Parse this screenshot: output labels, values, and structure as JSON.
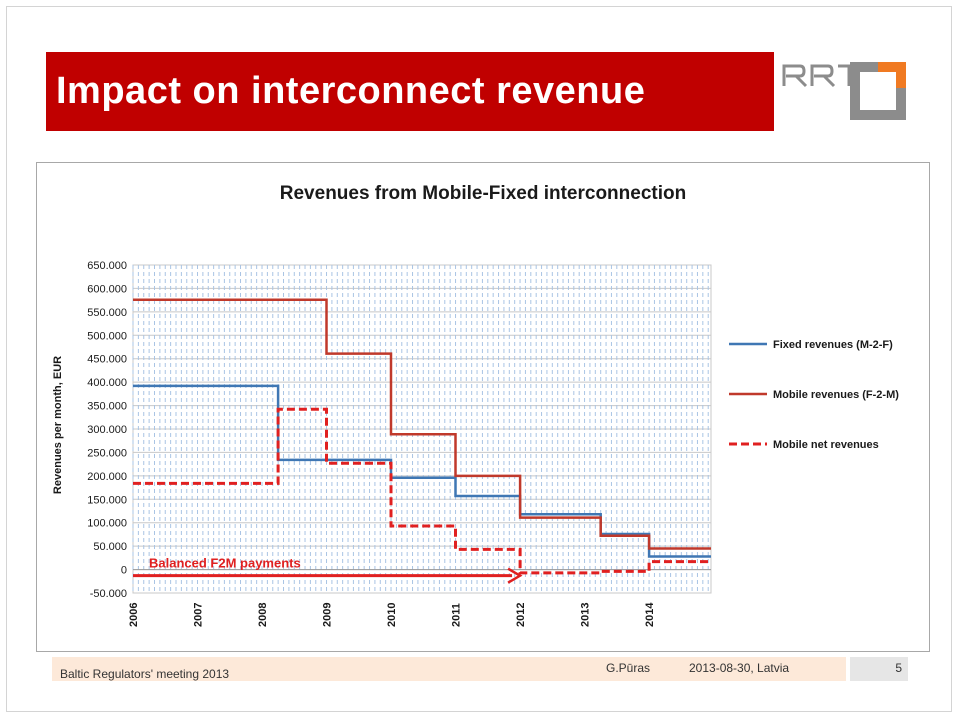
{
  "slide": {
    "title": "Impact on interconnect revenue",
    "logo_text": "RRT",
    "footer_left": "Baltic Regulators' meeting 2013",
    "footer_presenter": "G.Pūras",
    "footer_date": "2013-08-30,  Latvia",
    "page_number": "5"
  },
  "colors": {
    "title_bar": "#c00000",
    "fixed": "#3f77b4",
    "mobile": "#c0392b",
    "net": "#e02020",
    "logo_orange": "#f07a22",
    "logo_gray": "#8c8c8c"
  },
  "chart_data": {
    "type": "line",
    "title": "Revenues from Mobile-Fixed interconnection",
    "ylabel": "Revenues per month, EUR",
    "xlabel": "",
    "ylim": [
      -50000,
      650000
    ],
    "xlim": [
      2006,
      2014.96
    ],
    "y_ticks": [
      "650.000",
      "600.000",
      "550.000",
      "500.000",
      "450.000",
      "400.000",
      "350.000",
      "300.000",
      "250.000",
      "200.000",
      "150.000",
      "100.000",
      "50.000",
      "0",
      "-50.000"
    ],
    "x_tick_labels": [
      "2006",
      "2007",
      "2008",
      "2009",
      "2010",
      "2011",
      "2012",
      "2013",
      "2014"
    ],
    "grid": true,
    "legend_position": "right",
    "series": [
      {
        "name": "Fixed revenues (M-2-F)",
        "style": "solid",
        "color": "#3f77b4",
        "points": [
          [
            2006,
            392000
          ],
          [
            2008.25,
            392000
          ],
          [
            2008.25,
            234000
          ],
          [
            2010,
            234000
          ],
          [
            2010,
            196000
          ],
          [
            2011,
            196000
          ],
          [
            2011,
            157000
          ],
          [
            2012,
            157000
          ],
          [
            2012,
            118000
          ],
          [
            2013.25,
            118000
          ],
          [
            2013.25,
            76000
          ],
          [
            2014,
            76000
          ],
          [
            2014,
            28000
          ],
          [
            2014.96,
            28000
          ]
        ]
      },
      {
        "name": "Mobile revenues (F-2-M)",
        "style": "solid",
        "color": "#c0392b",
        "points": [
          [
            2006,
            576000
          ],
          [
            2009,
            576000
          ],
          [
            2009,
            461000
          ],
          [
            2010,
            461000
          ],
          [
            2010,
            289000
          ],
          [
            2011,
            289000
          ],
          [
            2011,
            200000
          ],
          [
            2012,
            200000
          ],
          [
            2012,
            111000
          ],
          [
            2013.25,
            111000
          ],
          [
            2013.25,
            72000
          ],
          [
            2014,
            72000
          ],
          [
            2014,
            45000
          ],
          [
            2014.96,
            45000
          ]
        ]
      },
      {
        "name": "Mobile net revenues",
        "style": "dashed",
        "color": "#e02020",
        "points": [
          [
            2006,
            184000
          ],
          [
            2008.25,
            184000
          ],
          [
            2008.25,
            342000
          ],
          [
            2009,
            342000
          ],
          [
            2009,
            227000
          ],
          [
            2010,
            227000
          ],
          [
            2010,
            93000
          ],
          [
            2011,
            93000
          ],
          [
            2011,
            43000
          ],
          [
            2012,
            43000
          ],
          [
            2012,
            -7000
          ],
          [
            2013.25,
            -7000
          ],
          [
            2013.25,
            -4000
          ],
          [
            2014,
            -4000
          ],
          [
            2014,
            17000
          ],
          [
            2014.96,
            17000
          ]
        ]
      }
    ],
    "annotation": {
      "text": "Balanced F2M payments",
      "arrow_from_x": 2006,
      "arrow_to_x": 2012,
      "arrow_y": -13000,
      "color": "#e02020"
    }
  }
}
